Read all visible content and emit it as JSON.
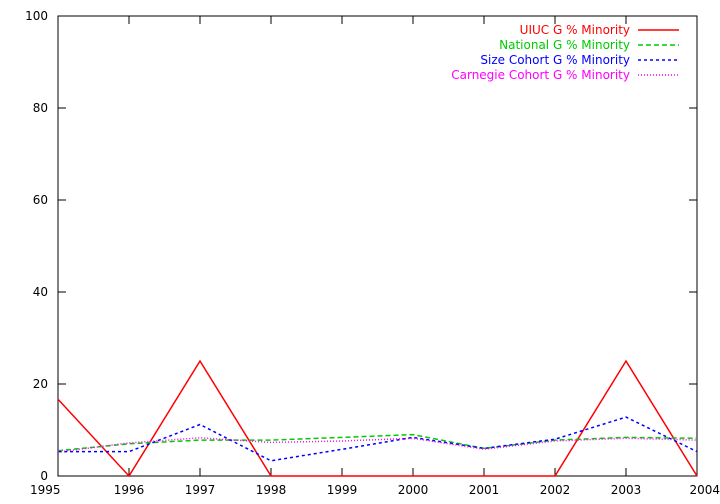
{
  "chart_data": {
    "type": "line",
    "title": "",
    "xlabel": "",
    "ylabel": "",
    "x": [
      1995,
      1996,
      1997,
      1998,
      1999,
      2000,
      2001,
      2002,
      2003,
      2004
    ],
    "xlim": [
      1995,
      2004
    ],
    "ylim": [
      0,
      100
    ],
    "x_ticks": [
      "1995",
      "1996",
      "1997",
      "1998",
      "1999",
      "2000",
      "2001",
      "2002",
      "2003",
      "2004"
    ],
    "y_ticks": [
      "0",
      "20",
      "40",
      "60",
      "80",
      "100"
    ],
    "grid": false,
    "legend_position": "top-right",
    "series": [
      {
        "name": "UIUC G % Minority",
        "color": "#ff0000",
        "dash": "solid",
        "values": [
          16.7,
          0,
          25,
          0,
          0,
          0,
          0,
          0,
          25,
          0
        ]
      },
      {
        "name": "National G % Minority",
        "color": "#00cc00",
        "dash": "dashed",
        "values": [
          5.5,
          7.0,
          7.8,
          7.8,
          8.4,
          9.0,
          6.0,
          7.8,
          8.4,
          8.2
        ]
      },
      {
        "name": "Size Cohort G % Minority",
        "color": "#0000ff",
        "dash": "dotted-short",
        "values": [
          5.3,
          5.3,
          11.2,
          3.3,
          5.8,
          8.4,
          6.0,
          8.0,
          12.8,
          5.3
        ]
      },
      {
        "name": "Carnegie Cohort G % Minority",
        "color": "#ff00ff",
        "dash": "dotted",
        "values": [
          5.2,
          7.2,
          8.3,
          7.3,
          7.6,
          8.2,
          5.8,
          7.6,
          8.2,
          7.8
        ]
      }
    ]
  }
}
